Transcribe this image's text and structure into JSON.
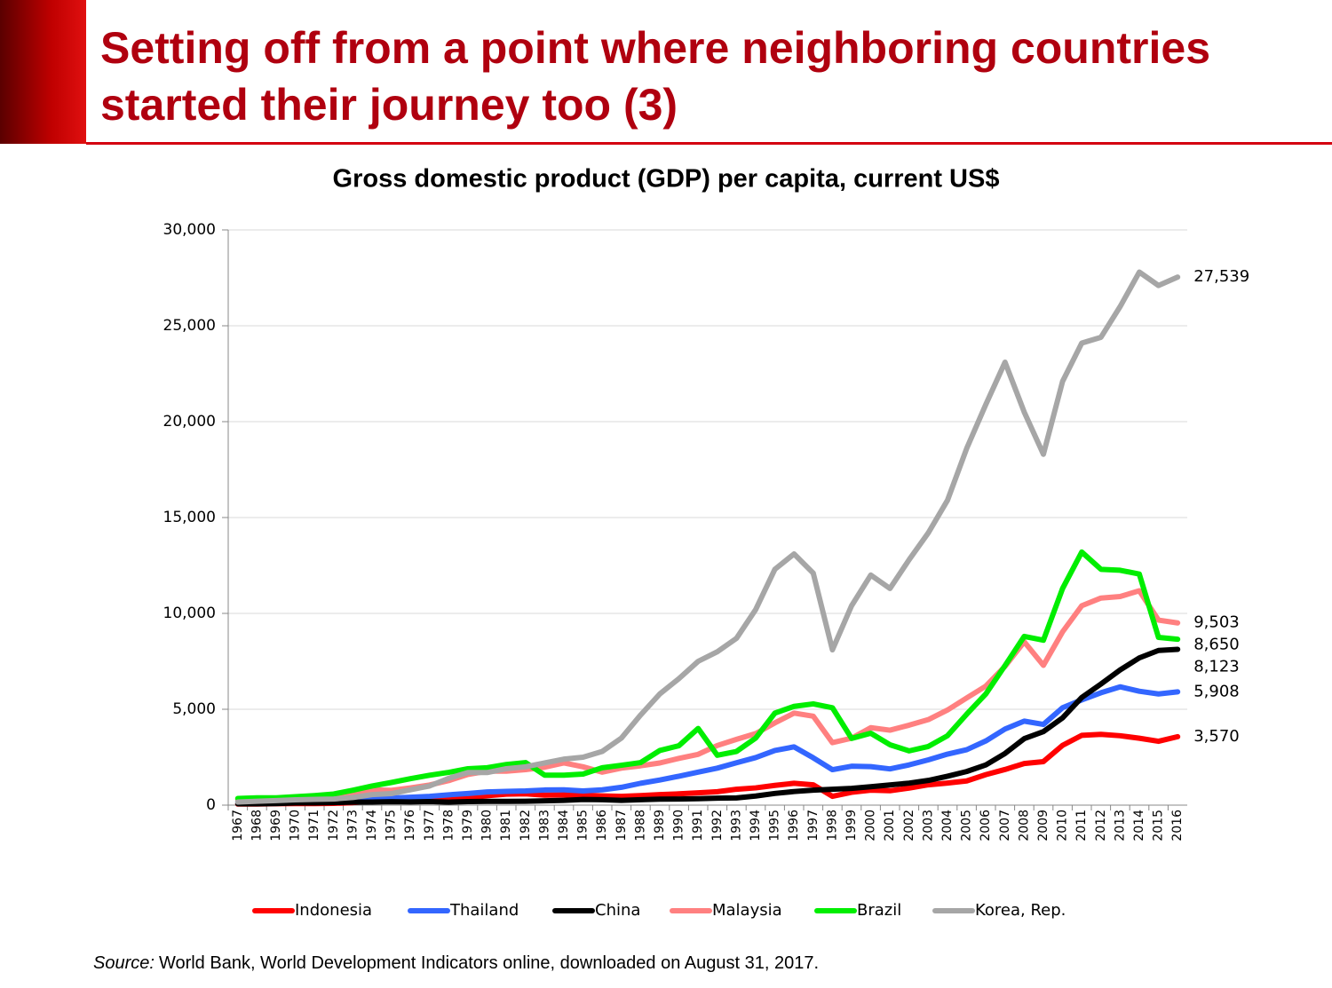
{
  "title": "Setting off from a point where neighboring countries started their journey too (3)",
  "source": {
    "label": "Source:",
    "text": "World Bank, World Development Indicators online, downloaded on August 31, 2017."
  },
  "chart_data": {
    "type": "line",
    "title": "Gross domestic product (GDP) per capita, current US$",
    "categories": [
      "1967",
      "1968",
      "1969",
      "1970",
      "1971",
      "1972",
      "1973",
      "1974",
      "1975",
      "1976",
      "1977",
      "1978",
      "1979",
      "1980",
      "1981",
      "1982",
      "1983",
      "1984",
      "1985",
      "1986",
      "1987",
      "1988",
      "1989",
      "1990",
      "1991",
      "1992",
      "1993",
      "1994",
      "1995",
      "1996",
      "1997",
      "1998",
      "1999",
      "2000",
      "2001",
      "2002",
      "2003",
      "2004",
      "2005",
      "2006",
      "2007",
      "2008",
      "2009",
      "2010",
      "2011",
      "2012",
      "2013",
      "2014",
      "2015",
      "2016"
    ],
    "ylim": [
      0,
      30000
    ],
    "yticks": [
      0,
      {
        "value": 5000,
        "label": "5,000"
      },
      {
        "value": 10000,
        "label": "10,000"
      },
      {
        "value": 15000,
        "label": "15,000"
      },
      {
        "value": 20000,
        "label": "20,000"
      },
      {
        "value": 25000,
        "label": "25,000"
      },
      {
        "value": 30000,
        "label": "30,000"
      }
    ],
    "grid": true,
    "legend": "bottom",
    "series": [
      {
        "name": "Indonesia",
        "color": "#ff0000",
        "values": [
          55,
          60,
          75,
          80,
          80,
          90,
          130,
          210,
          240,
          290,
          350,
          380,
          370,
          490,
          570,
          590,
          520,
          530,
          520,
          480,
          460,
          500,
          550,
          590,
          640,
          700,
          830,
          900,
          1030,
          1140,
          1060,
          460,
          670,
          780,
          750,
          890,
          1060,
          1150,
          1260,
          1590,
          1860,
          2170,
          2270,
          3120,
          3640,
          3690,
          3620,
          3490,
          3330,
          3570
        ],
        "value_labels": [
          null,
          null,
          null,
          null,
          null,
          null,
          null,
          null,
          null,
          null,
          null,
          null,
          null,
          null,
          null,
          null,
          null,
          null,
          null,
          null,
          null,
          null,
          null,
          null,
          null,
          null,
          null,
          null,
          null,
          null,
          null,
          null,
          null,
          null,
          null,
          null,
          null,
          null,
          null,
          null,
          null,
          null,
          null,
          null,
          null,
          null,
          null,
          null,
          null,
          "3,570"
        ]
      },
      {
        "name": "Thailand",
        "color": "#3366ff",
        "values": [
          170,
          180,
          195,
          200,
          200,
          220,
          290,
          350,
          370,
          410,
          460,
          540,
          610,
          690,
          720,
          740,
          790,
          800,
          740,
          800,
          930,
          1140,
          1310,
          1510,
          1720,
          1930,
          2210,
          2480,
          2850,
          3040,
          2470,
          1850,
          2030,
          2010,
          1890,
          2100,
          2360,
          2660,
          2890,
          3350,
          3970,
          4380,
          4210,
          5080,
          5490,
          5860,
          6170,
          5940,
          5800,
          5908
        ],
        "value_labels": [
          null,
          null,
          null,
          null,
          null,
          null,
          null,
          null,
          null,
          null,
          null,
          null,
          null,
          null,
          null,
          null,
          null,
          null,
          null,
          null,
          null,
          null,
          null,
          null,
          null,
          null,
          null,
          null,
          null,
          null,
          null,
          null,
          null,
          null,
          null,
          null,
          null,
          null,
          null,
          null,
          null,
          null,
          null,
          null,
          null,
          null,
          null,
          null,
          null,
          "5,908"
        ]
      },
      {
        "name": "China",
        "color": "#000000",
        "values": [
          72,
          70,
          79,
          113,
          118,
          131,
          157,
          160,
          178,
          165,
          185,
          156,
          183,
          195,
          197,
          203,
          225,
          250,
          294,
          281,
          251,
          284,
          311,
          318,
          333,
          366,
          377,
          473,
          610,
          709,
          782,
          829,
          873,
          959,
          1053,
          1149,
          1289,
          1509,
          1753,
          2099,
          2694,
          3468,
          3832,
          4550,
          5618,
          6317,
          7051,
          7679,
          8067,
          8123
        ],
        "value_labels": [
          null,
          null,
          null,
          null,
          null,
          null,
          null,
          null,
          null,
          null,
          null,
          null,
          null,
          null,
          null,
          null,
          null,
          null,
          null,
          null,
          null,
          null,
          null,
          null,
          null,
          null,
          null,
          null,
          null,
          null,
          null,
          null,
          null,
          null,
          null,
          null,
          null,
          null,
          null,
          null,
          null,
          null,
          null,
          null,
          null,
          null,
          null,
          null,
          null,
          "8,123"
        ]
      },
      {
        "name": "Malaysia",
        "color": "#ff8080",
        "values": [
          300,
          320,
          350,
          360,
          390,
          450,
          660,
          800,
          770,
          900,
          1050,
          1280,
          1600,
          1770,
          1770,
          1850,
          1980,
          2200,
          2000,
          1720,
          1930,
          2050,
          2200,
          2440,
          2650,
          3110,
          3430,
          3730,
          4290,
          4800,
          4640,
          3260,
          3490,
          4040,
          3910,
          4170,
          4460,
          4960,
          5590,
          6210,
          7240,
          8520,
          7290,
          9040,
          10400,
          10800,
          10880,
          11180,
          9650,
          9503
        ],
        "value_labels": [
          null,
          null,
          null,
          null,
          null,
          null,
          null,
          null,
          null,
          null,
          null,
          null,
          null,
          null,
          null,
          null,
          null,
          null,
          null,
          null,
          null,
          null,
          null,
          null,
          null,
          null,
          null,
          null,
          null,
          null,
          null,
          null,
          null,
          null,
          null,
          null,
          null,
          null,
          null,
          null,
          null,
          null,
          null,
          null,
          null,
          null,
          null,
          null,
          null,
          "9,503"
        ]
      },
      {
        "name": "Brazil",
        "color": "#00ee00",
        "values": [
          350,
          380,
          380,
          440,
          500,
          580,
          780,
          1000,
          1180,
          1380,
          1560,
          1710,
          1900,
          1950,
          2120,
          2220,
          1560,
          1560,
          1620,
          1950,
          2080,
          2220,
          2850,
          3100,
          4000,
          2600,
          2800,
          3500,
          4800,
          5150,
          5280,
          5080,
          3480,
          3750,
          3150,
          2830,
          3060,
          3620,
          4740,
          5800,
          7280,
          8800,
          8600,
          11300,
          13200,
          12300,
          12250,
          12050,
          8750,
          8650
        ],
        "value_labels": [
          null,
          null,
          null,
          null,
          null,
          null,
          null,
          null,
          null,
          null,
          null,
          null,
          null,
          null,
          null,
          null,
          null,
          null,
          null,
          null,
          null,
          null,
          null,
          null,
          null,
          null,
          null,
          null,
          null,
          null,
          null,
          null,
          null,
          null,
          null,
          null,
          null,
          null,
          null,
          null,
          null,
          null,
          null,
          null,
          null,
          null,
          null,
          null,
          null,
          "8,650"
        ]
      },
      {
        "name": "Korea, Rep.",
        "color": "#a6a6a6",
        "values": [
          160,
          200,
          240,
          280,
          300,
          320,
          400,
          550,
          600,
          800,
          1000,
          1400,
          1700,
          1700,
          1900,
          2000,
          2200,
          2400,
          2500,
          2800,
          3500,
          4700,
          5800,
          6600,
          7500,
          8000,
          8700,
          10200,
          12300,
          13100,
          12100,
          8100,
          10400,
          12000,
          11300,
          12800,
          14200,
          15900,
          18600,
          20900,
          23100,
          20500,
          18300,
          22100,
          24100,
          24400,
          26000,
          27800,
          27100,
          27539
        ],
        "value_labels": [
          null,
          null,
          null,
          null,
          null,
          null,
          null,
          null,
          null,
          null,
          null,
          null,
          null,
          null,
          null,
          null,
          null,
          null,
          null,
          null,
          null,
          null,
          null,
          null,
          null,
          null,
          null,
          null,
          null,
          null,
          null,
          null,
          null,
          null,
          null,
          null,
          null,
          null,
          null,
          null,
          null,
          null,
          null,
          null,
          null,
          null,
          null,
          null,
          null,
          "27,539"
        ]
      }
    ]
  }
}
